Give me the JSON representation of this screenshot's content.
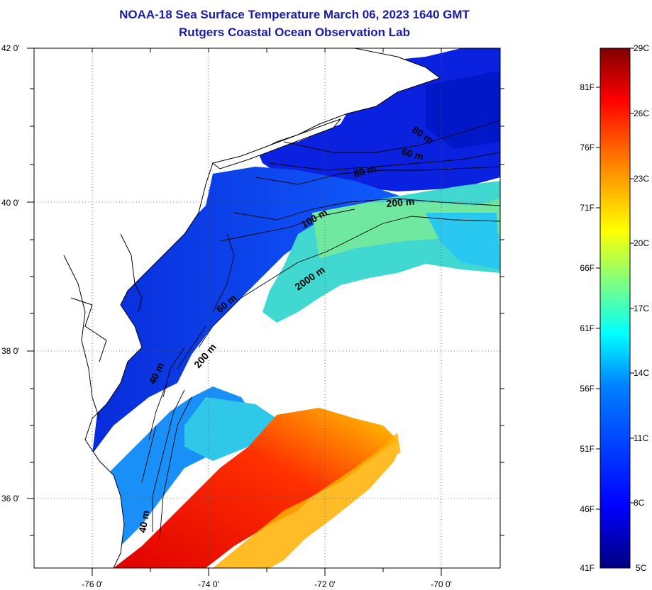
{
  "title": {
    "line1": "NOAA-18 Sea Surface Temperature March 06, 2023 1640 GMT",
    "line2": "Rutgers Coastal Ocean Observation Lab"
  },
  "map": {
    "lat_labels": [
      "42 0'",
      "40 0'",
      "38 0'",
      "36 0'"
    ],
    "lon_labels": [
      "-76 0'",
      "-74 0'",
      "-72 0'",
      "-70 0'"
    ],
    "contour_labels": [
      "80 m",
      "60 m",
      "80 m",
      "200 m",
      "100 m",
      "2000 m",
      "60 m",
      "200 m",
      "40 m",
      "40 m"
    ]
  },
  "colorbar": {
    "fahrenheit_labels": [
      "81F",
      "76F",
      "71F",
      "66F",
      "61F",
      "56F",
      "51F",
      "46F",
      "41F"
    ],
    "celsius_labels": [
      "29C",
      "26C",
      "23C",
      "20C",
      "17C",
      "14C",
      "11C",
      "8C",
      "5C"
    ],
    "colors": [
      "#000080",
      "#0000ff",
      "#0080ff",
      "#00ffff",
      "#80ff80",
      "#ffff00",
      "#ff8000",
      "#ff0000",
      "#800000"
    ]
  }
}
